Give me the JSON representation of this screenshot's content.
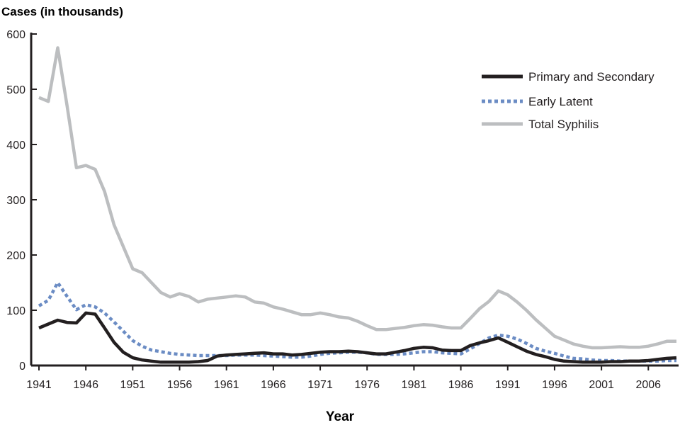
{
  "chart_data": {
    "type": "line",
    "title": "",
    "ylabel": "Cases (in thousands)",
    "xlabel": "Year",
    "xlim": [
      1941,
      2009
    ],
    "ylim": [
      0,
      600
    ],
    "yticks": [
      0,
      100,
      200,
      300,
      400,
      500,
      600
    ],
    "xticks": [
      1941,
      1946,
      1951,
      1956,
      1961,
      1966,
      1971,
      1976,
      1981,
      1986,
      1991,
      1996,
      2001,
      2006
    ],
    "grid": false,
    "legend_position": "top-right",
    "x": [
      1941,
      1942,
      1943,
      1944,
      1945,
      1946,
      1947,
      1948,
      1949,
      1950,
      1951,
      1952,
      1953,
      1954,
      1955,
      1956,
      1957,
      1958,
      1959,
      1960,
      1961,
      1962,
      1963,
      1964,
      1965,
      1966,
      1967,
      1968,
      1969,
      1970,
      1971,
      1972,
      1973,
      1974,
      1975,
      1976,
      1977,
      1978,
      1979,
      1980,
      1981,
      1982,
      1983,
      1984,
      1985,
      1986,
      1987,
      1988,
      1989,
      1990,
      1991,
      1992,
      1993,
      1994,
      1995,
      1996,
      1997,
      1998,
      1999,
      2000,
      2001,
      2002,
      2003,
      2004,
      2005,
      2006,
      2007,
      2008,
      2009
    ],
    "series": [
      {
        "name": "Primary and Secondary",
        "color": "#231f20",
        "style": "solid",
        "values": [
          68,
          75,
          82,
          78,
          77,
          95,
          93,
          68,
          42,
          24,
          14,
          10,
          8,
          6,
          6,
          6,
          6,
          7,
          9,
          17,
          19,
          20,
          21,
          22,
          23,
          21,
          21,
          19,
          20,
          22,
          24,
          25,
          25,
          26,
          25,
          23,
          21,
          21,
          24,
          27,
          31,
          33,
          32,
          28,
          27,
          27,
          36,
          41,
          45,
          50,
          42,
          34,
          26,
          20,
          16,
          11,
          8,
          7,
          6,
          6,
          6,
          7,
          7,
          8,
          8,
          9,
          11,
          13,
          14
        ]
      },
      {
        "name": "Early Latent",
        "color": "#6b8cc4",
        "style": "dotted",
        "values": [
          108,
          118,
          150,
          125,
          101,
          110,
          106,
          95,
          79,
          62,
          45,
          35,
          28,
          25,
          22,
          20,
          19,
          18,
          18,
          18,
          18,
          19,
          19,
          19,
          18,
          17,
          16,
          15,
          15,
          17,
          20,
          22,
          23,
          24,
          24,
          23,
          20,
          20,
          20,
          21,
          23,
          25,
          25,
          23,
          22,
          21,
          30,
          40,
          50,
          55,
          53,
          48,
          40,
          31,
          26,
          22,
          17,
          13,
          12,
          10,
          9,
          9,
          8,
          8,
          8,
          8,
          8,
          9,
          9
        ]
      },
      {
        "name": "Total Syphilis",
        "color": "#bcbec0",
        "style": "solid",
        "values": [
          485,
          478,
          575,
          470,
          358,
          362,
          355,
          315,
          255,
          215,
          175,
          168,
          150,
          132,
          124,
          130,
          125,
          115,
          120,
          122,
          124,
          126,
          124,
          115,
          113,
          106,
          102,
          97,
          92,
          92,
          95,
          92,
          88,
          86,
          80,
          72,
          65,
          65,
          67,
          69,
          72,
          74,
          73,
          70,
          68,
          68,
          85,
          103,
          116,
          135,
          128,
          115,
          100,
          83,
          68,
          53,
          46,
          39,
          35,
          32,
          32,
          33,
          34,
          33,
          33,
          35,
          39,
          44,
          44
        ]
      }
    ]
  }
}
